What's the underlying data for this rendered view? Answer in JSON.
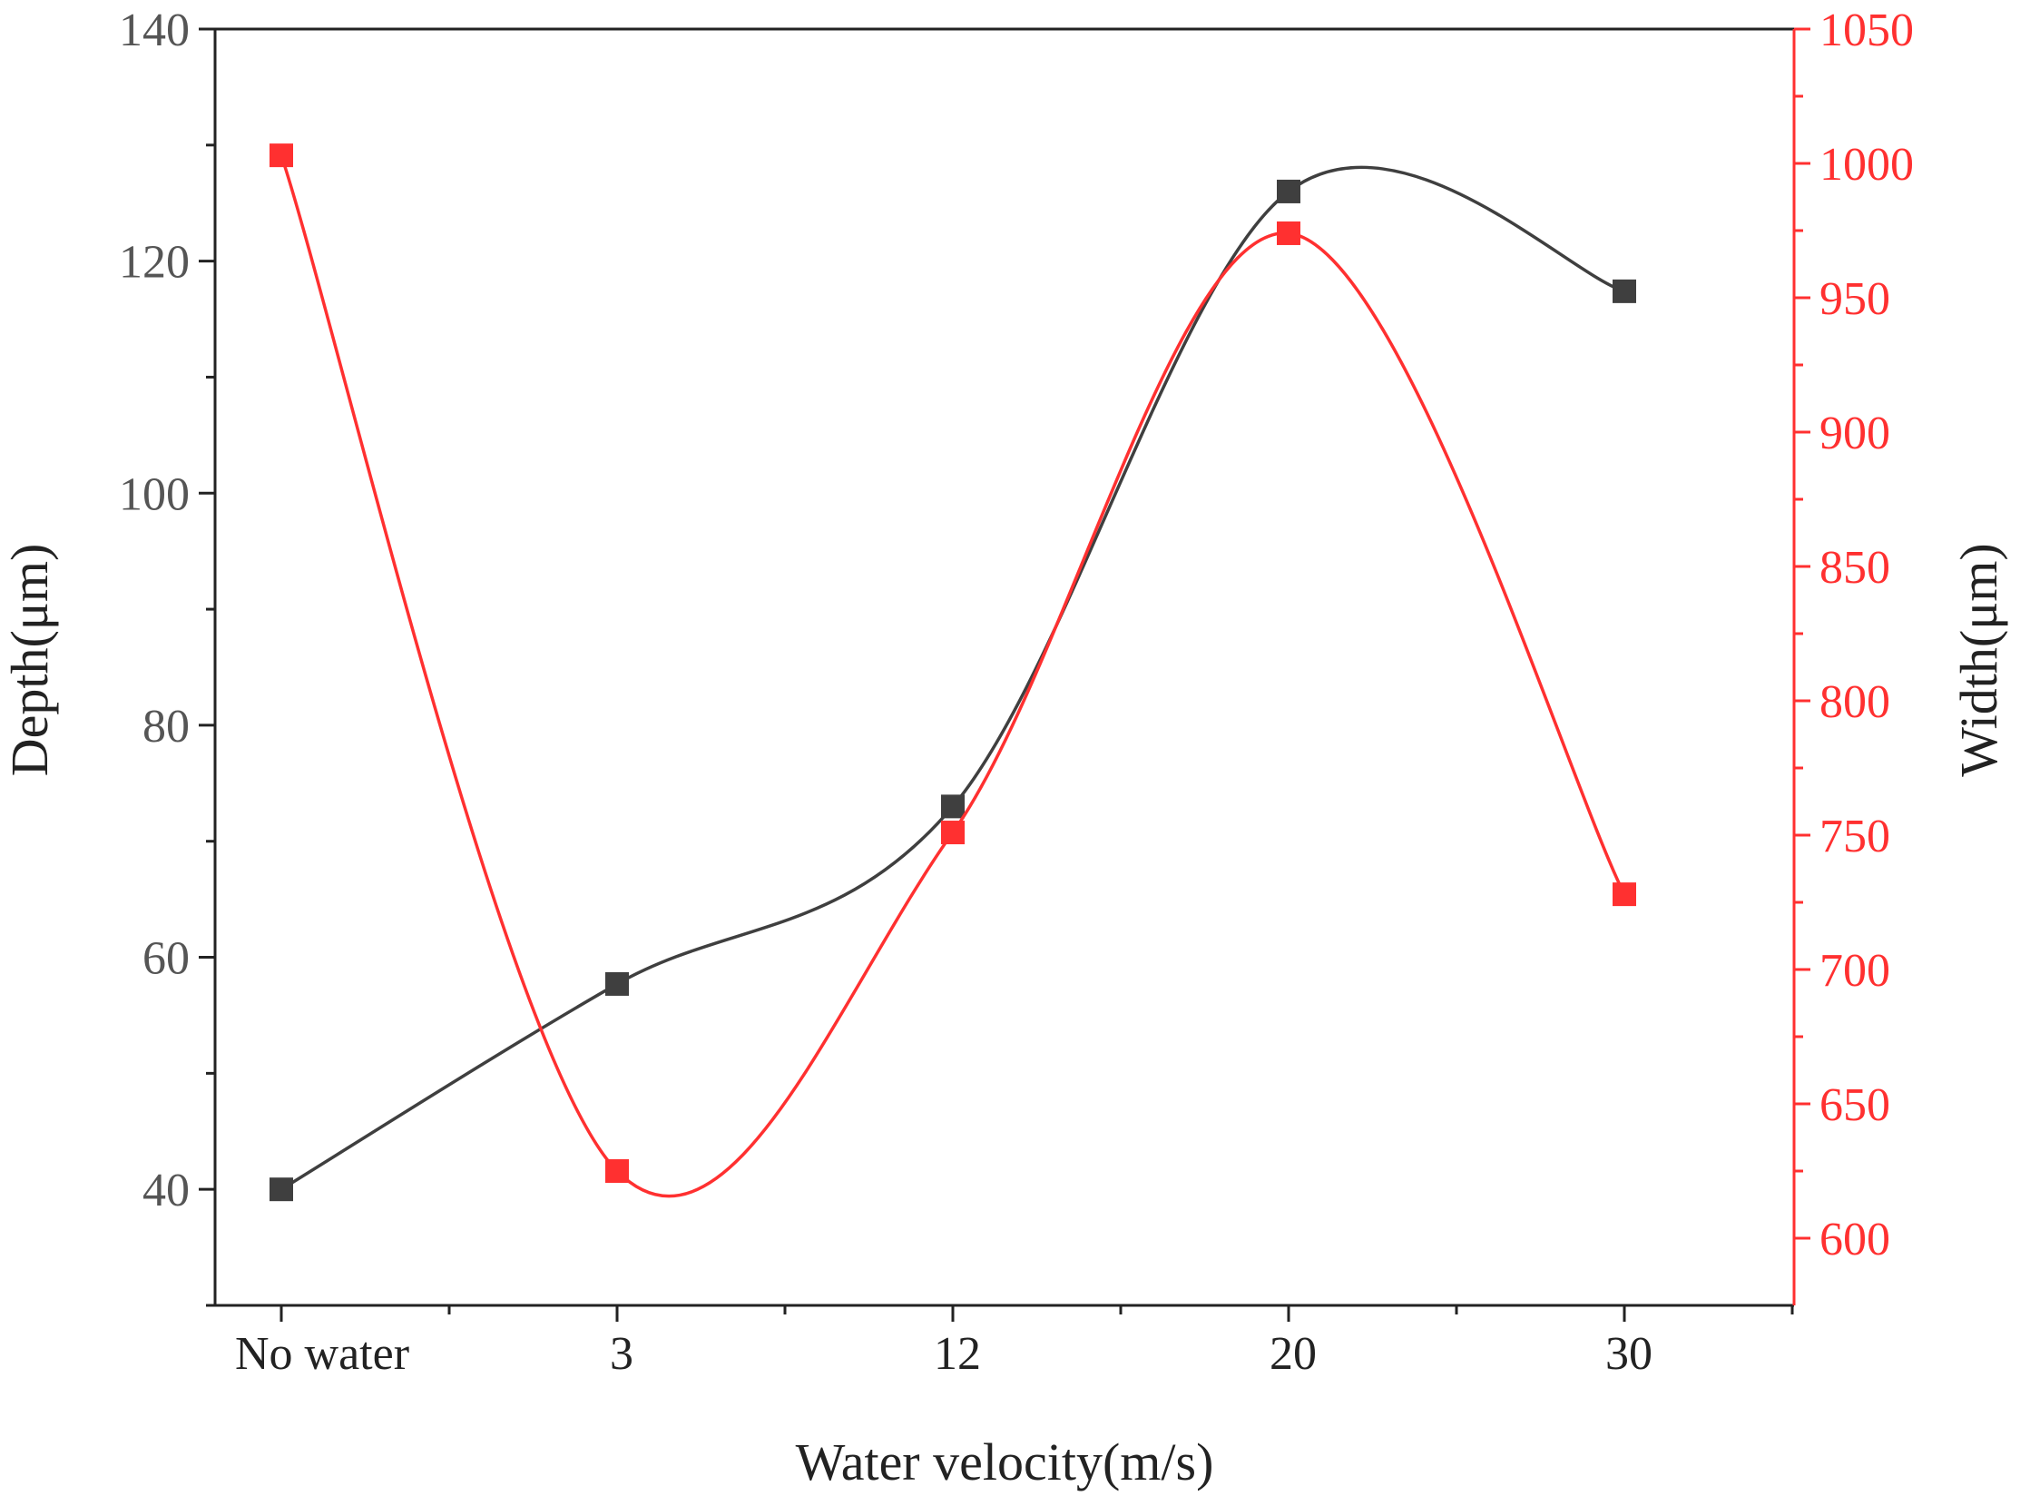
{
  "chart_data": {
    "type": "line",
    "smooth": true,
    "categories": [
      "No water",
      "3",
      "12",
      "20",
      "30"
    ],
    "xlabel": "Water velocity(m/s)",
    "series": [
      {
        "name": "Depth",
        "axis": "left",
        "color": "#3f3f3f",
        "values": [
          40,
          57.7,
          73,
          126,
          117.4
        ]
      },
      {
        "name": "Width",
        "axis": "right",
        "color": "#ff3030",
        "values": [
          1003,
          625,
          751,
          974,
          728
        ]
      }
    ],
    "left_axis": {
      "label": "Depth(μm)",
      "range": [
        30,
        140
      ],
      "ticks": [
        40,
        60,
        80,
        100,
        120,
        140
      ]
    },
    "right_axis": {
      "label": "Width(μm)",
      "range": [
        575,
        1050
      ],
      "ticks": [
        600,
        650,
        700,
        750,
        800,
        850,
        900,
        950,
        1000,
        1050
      ],
      "color": "#ff3030"
    }
  }
}
